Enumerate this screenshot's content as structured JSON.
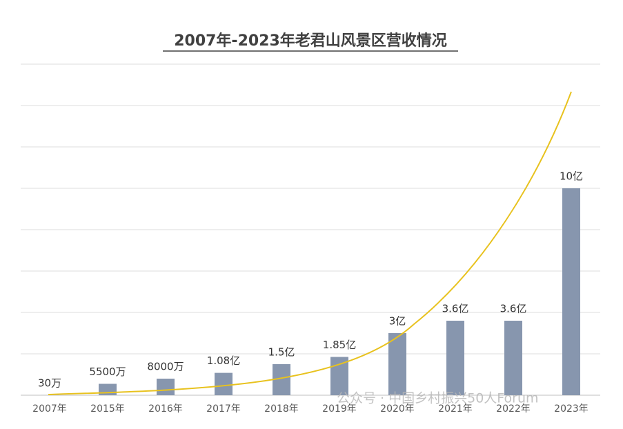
{
  "chart_data": {
    "type": "bar",
    "title": "2007年-2023年老君山风景区营收情况",
    "categories": [
      "2007年",
      "2015年",
      "2016年",
      "2017年",
      "2018年",
      "2019年",
      "2020年",
      "2021年",
      "2022年",
      "2023年"
    ],
    "values": [
      30,
      5500,
      8000,
      10800,
      15000,
      18500,
      30000,
      36000,
      36000,
      100000
    ],
    "value_labels": [
      "30万",
      "5500万",
      "8000万",
      "1.08亿",
      "1.5亿",
      "1.85亿",
      "3亿",
      "3.6亿",
      "3.6亿",
      "10亿"
    ],
    "color": "#8796ae",
    "ylim": [
      0,
      160000
    ],
    "yticks": [
      0,
      20000,
      40000,
      60000,
      80000,
      100000,
      120000,
      140000,
      160000
    ],
    "grid": true,
    "watermark": "公众号 · 中国乡村振兴50人Forum"
  }
}
